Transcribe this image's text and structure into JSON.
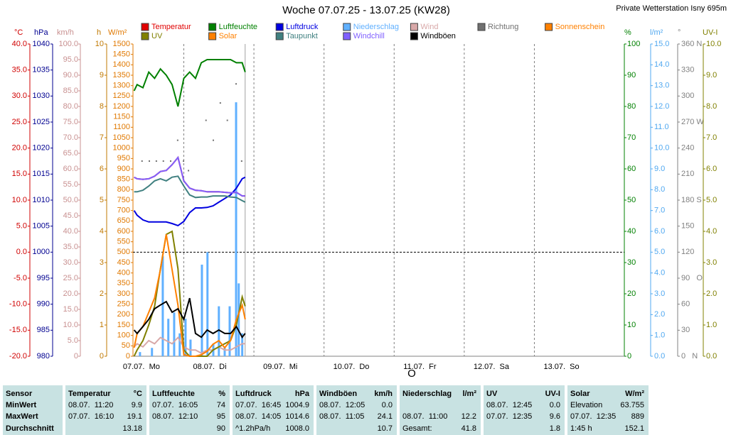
{
  "chart_data": {
    "type": "line",
    "title": "Woche 07.07.25 - 13.07.25 (KW28)",
    "subtitle": "Private Wetterstation Isny 695m",
    "xlim": [
      6.6,
      174.8
    ],
    "xticks": [
      {
        "value": 0,
        "label": "07.07.  Mo"
      },
      {
        "value": 24,
        "label": "08.07.  Di"
      },
      {
        "value": 48,
        "label": "09.07.  Mi"
      },
      {
        "value": 72,
        "label": "10.07.  Do"
      },
      {
        "value": 96,
        "label": "11.07.  Fr"
      },
      {
        "value": 120,
        "label": "12.07.  Sa"
      },
      {
        "value": 144,
        "label": "13.07.  So"
      }
    ],
    "current_time": 45,
    "reference_line": {
      "axis": "y",
      "value": 0
    },
    "annotations": [
      {
        "text": "O",
        "x": 102
      }
    ],
    "axes": [
      {
        "id": "y",
        "label": "°C",
        "color": "#d00000",
        "ylim": [
          -20,
          40
        ],
        "yticks": [
          {
            "value": -20,
            "label": "-20.0"
          },
          {
            "value": -15,
            "label": "-15.0"
          },
          {
            "value": -10,
            "label": "-10.0"
          },
          {
            "value": -5,
            "label": "-5.0"
          },
          {
            "value": 0,
            "label": "0.0"
          },
          {
            "value": 5,
            "label": "5.0"
          },
          {
            "value": 10,
            "label": "10.0"
          },
          {
            "value": 15,
            "label": "15.0"
          },
          {
            "value": 20,
            "label": "20.0"
          },
          {
            "value": 25,
            "label": "25.0"
          },
          {
            "value": 30,
            "label": "30.0"
          },
          {
            "value": 35,
            "label": "35.0"
          },
          {
            "value": 40,
            "label": "40.0"
          }
        ]
      },
      {
        "id": "y2",
        "label": "hPa",
        "color": "#000090",
        "ylim": [
          980,
          1040
        ],
        "yticks": [
          980,
          985,
          990,
          995,
          1000,
          1005,
          1010,
          1015,
          1020,
          1025,
          1030,
          1035,
          1040
        ]
      },
      {
        "id": "y3",
        "label": "km/h",
        "color": "#c89090",
        "ylim": [
          0,
          100
        ],
        "yticks": [
          0,
          {
            "value": 5,
            "label": "5.0"
          },
          {
            "value": 10,
            "label": "10.0"
          },
          {
            "value": 15,
            "label": "15.0"
          },
          {
            "value": 20,
            "label": "20.0"
          },
          {
            "value": 25,
            "label": "25.0"
          },
          {
            "value": 30,
            "label": "30.0"
          },
          {
            "value": 35,
            "label": "35.0"
          },
          {
            "value": 40,
            "label": "40.0"
          },
          {
            "value": 45,
            "label": "45.0"
          },
          {
            "value": 50,
            "label": "50.0"
          },
          {
            "value": 55,
            "label": "55.0"
          },
          {
            "value": 60,
            "label": "60.0"
          },
          {
            "value": 65,
            "label": "65.0"
          },
          {
            "value": 70,
            "label": "70.0"
          },
          {
            "value": 75,
            "label": "75.0"
          },
          {
            "value": 80,
            "label": "80.0"
          },
          {
            "value": 85,
            "label": "85.0"
          },
          {
            "value": 90,
            "label": "90.0"
          },
          {
            "value": 95,
            "label": "95.0"
          },
          {
            "value": 100,
            "label": "100.0"
          }
        ]
      },
      {
        "id": "y4",
        "label": "h",
        "color": "#c07800",
        "ylim": [
          0,
          10
        ],
        "yticks": [
          0,
          1,
          2,
          3,
          4,
          5,
          6,
          7,
          8,
          9,
          10
        ]
      },
      {
        "id": "y5",
        "label": "W/m²",
        "color": "#e07800",
        "ylim": [
          0,
          1500
        ],
        "yticks": [
          0,
          50,
          100,
          150,
          200,
          250,
          300,
          350,
          400,
          450,
          500,
          550,
          600,
          650,
          700,
          750,
          800,
          850,
          900,
          950,
          1000,
          1050,
          1100,
          1150,
          1200,
          1250,
          1300,
          1350,
          1400,
          1450,
          1500
        ]
      },
      {
        "id": "y6",
        "label": "%",
        "color": "#008000",
        "ylim": [
          0,
          100
        ],
        "yticks": [
          0,
          10,
          20,
          30,
          40,
          50,
          60,
          70,
          80,
          90,
          100
        ]
      },
      {
        "id": "y7",
        "label": "l/m²",
        "color": "#50a8f0",
        "ylim": [
          0,
          15
        ],
        "yticks": [
          {
            "value": 0,
            "label": "0.0"
          },
          {
            "value": 1,
            "label": "1.0"
          },
          {
            "value": 2,
            "label": "2.0"
          },
          {
            "value": 3,
            "label": "3.0"
          },
          {
            "value": 4,
            "label": "4.0"
          },
          {
            "value": 5,
            "label": "5.0"
          },
          {
            "value": 6,
            "label": "6.0"
          },
          {
            "value": 7,
            "label": "7.0"
          },
          {
            "value": 8,
            "label": "8.0"
          },
          {
            "value": 9,
            "label": "9.0"
          },
          {
            "value": 10,
            "label": "10.0"
          },
          {
            "value": 11,
            "label": "11.0"
          },
          {
            "value": 12,
            "label": "12.0"
          },
          {
            "value": 13,
            "label": "13.0"
          },
          {
            "value": 14,
            "label": "14.0"
          },
          {
            "value": 15,
            "label": "15.0"
          }
        ]
      },
      {
        "id": "y8",
        "label": "°",
        "color": "#808080",
        "ylim": [
          0,
          360
        ],
        "yticks": [
          {
            "value": 0,
            "label": "0   N"
          },
          30,
          60,
          {
            "value": 90,
            "label": "90   O"
          },
          120,
          150,
          {
            "value": 180,
            "label": "180 S"
          },
          210,
          240,
          {
            "value": 270,
            "label": "270 W"
          },
          300,
          330,
          {
            "value": 360,
            "label": "360 N"
          }
        ]
      },
      {
        "id": "y9",
        "label": "UV-I",
        "color": "#808000",
        "ylim": [
          0,
          10
        ],
        "yticks": [
          {
            "value": 0,
            "label": "0.0"
          },
          {
            "value": 1,
            "label": "1.0"
          },
          {
            "value": 2,
            "label": "2.0"
          },
          {
            "value": 3,
            "label": "3.0"
          },
          {
            "value": 4,
            "label": "4.0"
          },
          {
            "value": 5,
            "label": "5.0"
          },
          {
            "value": 6,
            "label": "6.0"
          },
          {
            "value": 7,
            "label": "7.0"
          },
          {
            "value": 8,
            "label": "8.0"
          },
          {
            "value": 9,
            "label": "9.0"
          },
          {
            "value": 10,
            "label": "10.0"
          }
        ]
      }
    ],
    "x": [
      7,
      8,
      10,
      12,
      14,
      16,
      18,
      20,
      22,
      24,
      26,
      28,
      30,
      32,
      34,
      36,
      38,
      40,
      42,
      44,
      45
    ],
    "series": [
      {
        "name": "Temperatur",
        "color": "#e00000",
        "axis": "y",
        "values": [
          14.4,
          14.1,
          14.0,
          14.1,
          14.6,
          15.5,
          15.7,
          16.8,
          18.2,
          13.7,
          12.3,
          11.9,
          11.8,
          11.6,
          11.6,
          11.6,
          11.5,
          11.4,
          11.5,
          10.8,
          10.8
        ]
      },
      {
        "name": "Luftfeuchte",
        "color": "#008000",
        "axis": "y6",
        "values": [
          85,
          87,
          86,
          91,
          89,
          92,
          90,
          87,
          80,
          89,
          91,
          89,
          94,
          95,
          95,
          95,
          95,
          95,
          94,
          94,
          91
        ]
      },
      {
        "name": "Luftdruck",
        "color": "#0000e0",
        "axis": "y2",
        "values": [
          1008.0,
          1007.1,
          1006.2,
          1005.8,
          1005.8,
          1005.8,
          1005.8,
          1005.5,
          1005.1,
          1005.9,
          1007.6,
          1008.5,
          1008.5,
          1008.6,
          1008.9,
          1009.6,
          1010.3,
          1011.0,
          1012.3,
          1014.1,
          1014.4
        ]
      },
      {
        "name": "Niederschlag",
        "color": "#60b0ff",
        "axis": "y7",
        "type": "bar",
        "x": [
          9,
          13.1,
          16.8,
          18.7,
          20.7,
          22.6,
          24.6,
          26.3,
          30.2,
          32.1,
          34.1,
          36,
          38,
          39.7,
          41.9,
          42.8,
          44
        ],
        "values": [
          0.2,
          0.4,
          4.8,
          1.8,
          2.1,
          1.1,
          1.8,
          0.8,
          4.4,
          5.0,
          0.6,
          2.4,
          0.4,
          2.4,
          12.2,
          3.5,
          1.1
        ]
      },
      {
        "name": "Wind",
        "color": "#d8a8a8",
        "axis": "y3",
        "values": [
          3,
          4,
          3,
          5,
          4,
          6,
          5,
          4,
          6,
          3,
          2,
          2,
          1,
          2,
          2,
          3,
          2,
          2,
          3,
          4,
          4
        ]
      },
      {
        "name": "Richtung",
        "color": "#707070",
        "axis": "y8",
        "type": "scatter",
        "x": [
          9.7,
          12.2,
          14.6,
          17.0,
          19.5,
          21.9,
          23.9,
          25.6,
          31.6,
          34.1,
          36.5,
          38.9,
          41.9,
          43.8
        ],
        "values": [
          225,
          225,
          225,
          225,
          225,
          249,
          225,
          214,
          272,
          249,
          292,
          272,
          314,
          225
        ]
      },
      {
        "name": "Sonnenschein",
        "color": "#ff8000",
        "axis": "y4",
        "values": [
          null,
          null,
          null,
          null,
          null,
          null,
          null,
          null,
          null,
          null,
          null,
          null,
          null,
          null,
          null,
          null,
          null,
          null,
          null,
          null,
          null
        ]
      },
      {
        "name": "UV",
        "color": "#808000",
        "axis": "y9",
        "values": [
          0,
          0.2,
          0.5,
          1,
          1.6,
          2.8,
          3.9,
          4,
          2.8,
          0.2,
          0,
          0,
          0,
          0,
          0.2,
          0.3,
          0.4,
          0.5,
          1,
          1.9,
          1.6
        ]
      },
      {
        "name": "Solar",
        "color": "#ff8000",
        "axis": "y5",
        "values": [
          41,
          109,
          143,
          211,
          280,
          416,
          586,
          416,
          245,
          7,
          0,
          0,
          7,
          24,
          58,
          75,
          41,
          75,
          177,
          245,
          177
        ]
      },
      {
        "name": "Taupunkt",
        "color": "#408080",
        "axis": "y",
        "values": [
          11.6,
          11.6,
          11.9,
          12.7,
          13.7,
          14.1,
          13.7,
          14.4,
          14.6,
          12.7,
          11.0,
          10.5,
          10.6,
          10.6,
          10.8,
          10.8,
          10.8,
          10.6,
          10.5,
          9.9,
          9.6
        ]
      },
      {
        "name": "Windchill",
        "color": "#8060ff",
        "axis": "y",
        "values": [
          14.4,
          14.1,
          14.0,
          14.1,
          14.6,
          15.5,
          15.7,
          16.8,
          18.2,
          13.7,
          12.3,
          11.9,
          11.8,
          11.6,
          11.6,
          11.6,
          11.5,
          11.4,
          11.5,
          10.8,
          10.8
        ]
      },
      {
        "name": "Windböen",
        "color": "#000000",
        "axis": "y3",
        "values": [
          8.4,
          7.3,
          9.5,
          11.8,
          15.2,
          16.4,
          17.5,
          14.1,
          15.2,
          11.8,
          18.6,
          7.3,
          6.1,
          8.4,
          7.3,
          8.4,
          7.3,
          7.3,
          9.5,
          6.1,
          7.3
        ]
      }
    ]
  },
  "table": {
    "header": [
      {
        "left": "Sensor"
      },
      {
        "left": "Temperatur",
        "right": "°C"
      },
      {
        "left": "Luftfeuchte",
        "right": "%"
      },
      {
        "left": "Luftdruck",
        "right": "hPa"
      },
      {
        "left": "Windböen",
        "right": "km/h"
      },
      {
        "left": "Niederschlag",
        "right": "l/m²"
      },
      {
        "left": "UV",
        "right": "UV-I"
      },
      {
        "left": "Solar",
        "right": "W/m²"
      }
    ],
    "rows": [
      [
        {
          "left": "MinWert"
        },
        {
          "left": "08.07.  11:20",
          "right": "9.9"
        },
        {
          "left": "07.07.  16:05",
          "right": "74"
        },
        {
          "left": "07.07.  16:45",
          "right": "1004.9"
        },
        {
          "left": "08.07.  12:05",
          "right": "0.0"
        },
        null,
        {
          "left": "08.07.  12:45",
          "right": "0.0"
        },
        {
          "left": "Elevation",
          "right": "63.755"
        }
      ],
      [
        {
          "left": "MaxWert"
        },
        {
          "left": "07.07.  16:10",
          "right": "19.1"
        },
        {
          "left": "08.07.  12:10",
          "right": "95"
        },
        {
          "left": "08.07.  14:05",
          "right": "1014.6"
        },
        {
          "left": "08.07.  11:05",
          "right": "24.1"
        },
        {
          "left": "08.07.  11:00",
          "right": "12.2"
        },
        {
          "left": "07.07.  12:35",
          "right": "9.6"
        },
        {
          "left": "07.07.  12:35",
          "right": "889"
        }
      ],
      [
        {
          "left": "Durchschnitt"
        },
        {
          "right": "13.18"
        },
        {
          "right": "90"
        },
        {
          "left": "^1.2hPa/h",
          "right": "1008.0"
        },
        {
          "right": "10.7"
        },
        {
          "left": "Gesamt:",
          "right": "41.8"
        },
        {
          "right": "1.8"
        },
        {
          "left": "1:45 h",
          "right": "152.1"
        }
      ]
    ]
  }
}
